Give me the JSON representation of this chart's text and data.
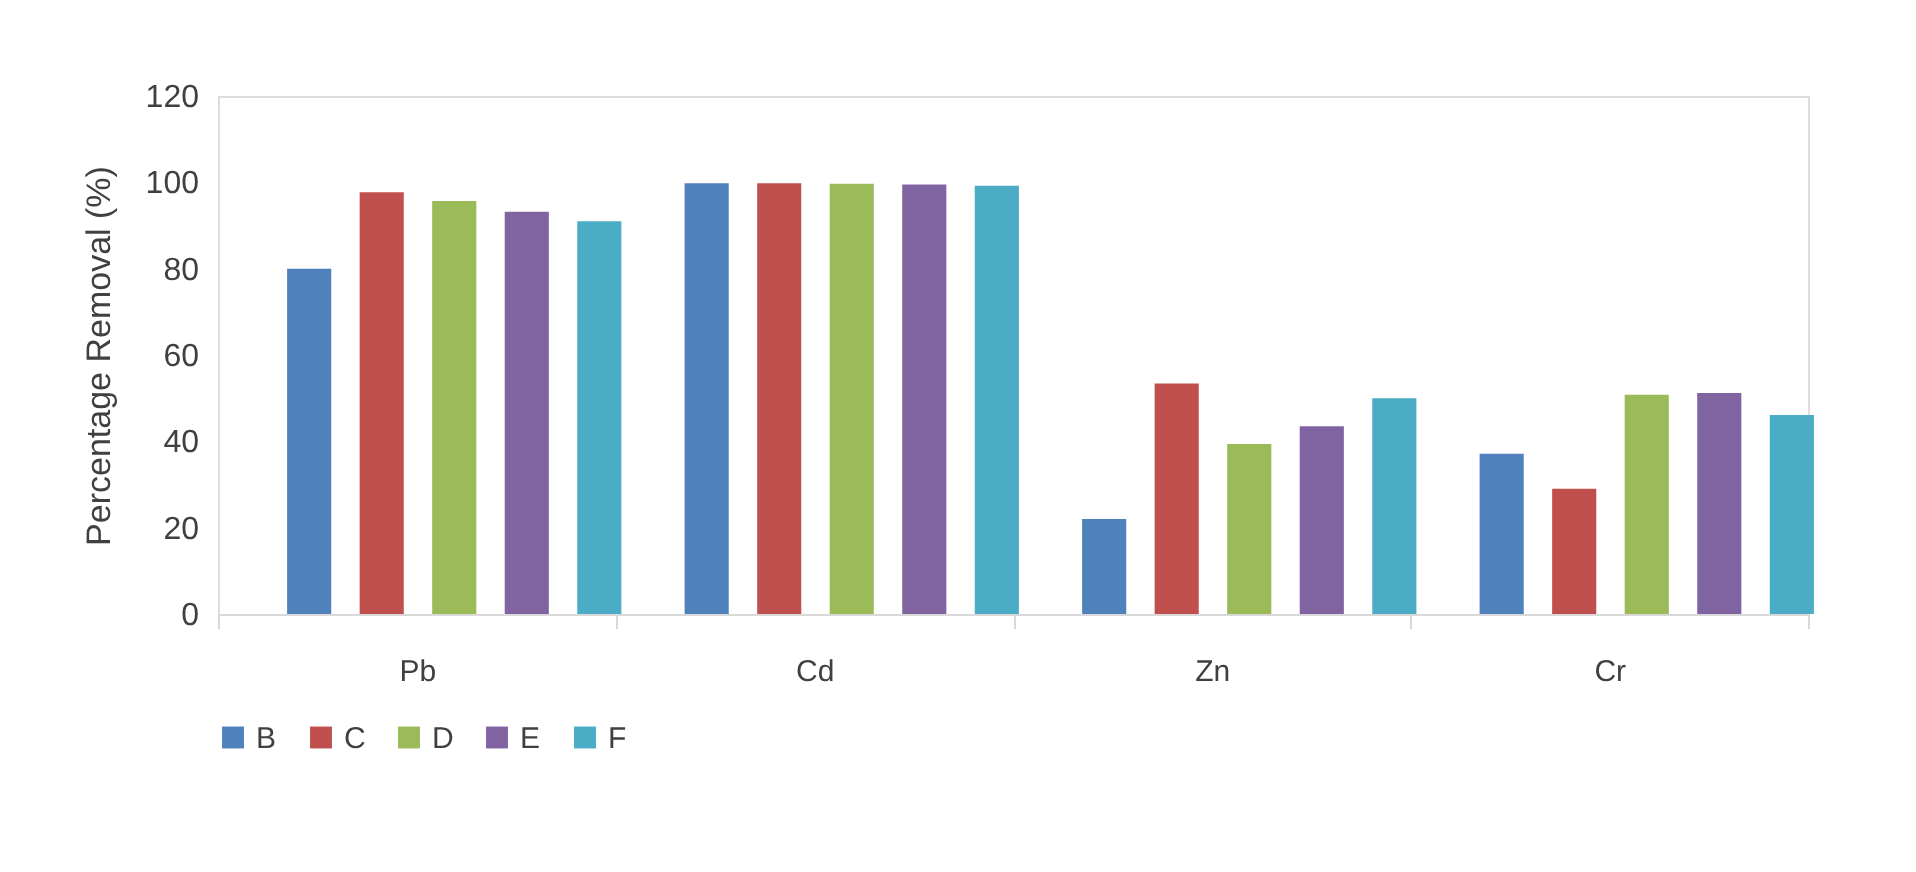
{
  "chart_data": {
    "type": "bar",
    "ylabel": "Percentage Removal (%)",
    "categories": [
      "Pb",
      "Cd",
      "Zn",
      "Cr"
    ],
    "series": [
      {
        "name": "B",
        "color": "#4f81bd",
        "values": [
          80.0,
          99.8,
          22.0,
          37.1
        ]
      },
      {
        "name": "C",
        "color": "#c0504d",
        "values": [
          97.7,
          99.8,
          53.4,
          29.0
        ]
      },
      {
        "name": "D",
        "color": "#9bbb59",
        "values": [
          95.7,
          99.7,
          39.4,
          50.8
        ]
      },
      {
        "name": "E",
        "color": "#8064a2",
        "values": [
          93.2,
          99.5,
          43.5,
          51.2
        ]
      },
      {
        "name": "F",
        "color": "#4bacc6",
        "values": [
          91.0,
          99.2,
          50.0,
          46.1
        ]
      }
    ],
    "ylim": [
      0,
      120
    ],
    "yticks": [
      0,
      20,
      40,
      60,
      80,
      100,
      120
    ],
    "grid": false,
    "legend": "bottom"
  }
}
